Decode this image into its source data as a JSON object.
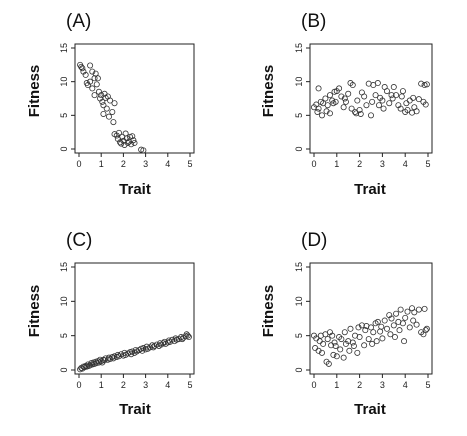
{
  "chart_data": [
    {
      "type": "scatter",
      "panel": "(A)",
      "xlabel": "Trait",
      "ylabel": "Fitness",
      "xlim": [
        0,
        5
      ],
      "ylim": [
        0,
        15
      ],
      "x_ticks": [
        0,
        1,
        2,
        3,
        4,
        5
      ],
      "y_ticks": [
        0,
        5,
        10,
        15
      ],
      "points": [
        [
          0.05,
          12.5
        ],
        [
          0.1,
          12.2
        ],
        [
          0.15,
          12.0
        ],
        [
          0.2,
          11.5
        ],
        [
          0.3,
          11.0
        ],
        [
          0.35,
          9.8
        ],
        [
          0.4,
          9.5
        ],
        [
          0.5,
          10.0
        ],
        [
          0.5,
          12.4
        ],
        [
          0.6,
          11.5
        ],
        [
          0.6,
          9.0
        ],
        [
          0.7,
          10.5
        ],
        [
          0.7,
          8.0
        ],
        [
          0.75,
          11.2
        ],
        [
          0.8,
          9.6
        ],
        [
          0.85,
          10.5
        ],
        [
          0.9,
          8.5
        ],
        [
          0.95,
          7.5
        ],
        [
          1.0,
          8.0
        ],
        [
          1.05,
          7.0
        ],
        [
          1.1,
          6.5
        ],
        [
          1.1,
          5.2
        ],
        [
          1.15,
          8.2
        ],
        [
          1.2,
          7.6
        ],
        [
          1.25,
          6.0
        ],
        [
          1.3,
          7.8
        ],
        [
          1.35,
          4.8
        ],
        [
          1.4,
          7.2
        ],
        [
          1.5,
          5.5
        ],
        [
          1.55,
          4.0
        ],
        [
          1.6,
          6.8
        ],
        [
          1.6,
          2.2
        ],
        [
          1.7,
          2.0
        ],
        [
          1.75,
          1.5
        ],
        [
          1.8,
          2.4
        ],
        [
          1.85,
          1.0
        ],
        [
          1.9,
          0.8
        ],
        [
          1.95,
          1.8
        ],
        [
          2.0,
          1.2
        ],
        [
          2.05,
          0.6
        ],
        [
          2.1,
          2.3
        ],
        [
          2.15,
          1.6
        ],
        [
          2.2,
          0.9
        ],
        [
          2.25,
          1.1
        ],
        [
          2.3,
          1.8
        ],
        [
          2.35,
          0.7
        ],
        [
          2.4,
          1.9
        ],
        [
          2.45,
          1.3
        ],
        [
          2.5,
          0.9
        ],
        [
          2.8,
          -0.1
        ],
        [
          2.9,
          -0.2
        ]
      ]
    },
    {
      "type": "scatter",
      "panel": "(B)",
      "xlabel": "Trait",
      "ylabel": "Fitness",
      "xlim": [
        0,
        5
      ],
      "ylim": [
        0,
        15
      ],
      "x_ticks": [
        0,
        1,
        2,
        3,
        4,
        5
      ],
      "y_ticks": [
        0,
        5,
        10,
        15
      ],
      "points": [
        [
          0.0,
          6.2
        ],
        [
          0.1,
          6.6
        ],
        [
          0.15,
          5.5
        ],
        [
          0.2,
          6.0
        ],
        [
          0.2,
          9.0
        ],
        [
          0.3,
          7.0
        ],
        [
          0.35,
          5.0
        ],
        [
          0.4,
          6.8
        ],
        [
          0.5,
          7.5
        ],
        [
          0.55,
          5.6
        ],
        [
          0.6,
          6.5
        ],
        [
          0.7,
          5.3
        ],
        [
          0.7,
          8.0
        ],
        [
          0.8,
          7.2
        ],
        [
          0.85,
          6.8
        ],
        [
          0.9,
          8.5
        ],
        [
          0.95,
          7.0
        ],
        [
          1.0,
          8.6
        ],
        [
          1.1,
          9.0
        ],
        [
          1.2,
          7.8
        ],
        [
          1.3,
          6.2
        ],
        [
          1.35,
          7.5
        ],
        [
          1.4,
          7.0
        ],
        [
          1.5,
          8.2
        ],
        [
          1.6,
          9.8
        ],
        [
          1.65,
          6.0
        ],
        [
          1.7,
          9.5
        ],
        [
          1.8,
          5.5
        ],
        [
          1.85,
          5.3
        ],
        [
          1.9,
          7.2
        ],
        [
          2.0,
          5.8
        ],
        [
          2.05,
          5.2
        ],
        [
          2.1,
          8.4
        ],
        [
          2.2,
          7.8
        ],
        [
          2.3,
          6.5
        ],
        [
          2.4,
          9.7
        ],
        [
          2.5,
          5.0
        ],
        [
          2.55,
          7.0
        ],
        [
          2.6,
          9.5
        ],
        [
          2.7,
          8.0
        ],
        [
          2.8,
          9.8
        ],
        [
          2.85,
          6.5
        ],
        [
          2.9,
          7.6
        ],
        [
          3.0,
          7.2
        ],
        [
          3.05,
          6.0
        ],
        [
          3.1,
          9.2
        ],
        [
          3.2,
          8.6
        ],
        [
          3.3,
          6.8
        ],
        [
          3.4,
          8.0
        ],
        [
          3.45,
          7.5
        ],
        [
          3.5,
          9.2
        ],
        [
          3.6,
          8.0
        ],
        [
          3.7,
          6.5
        ],
        [
          3.8,
          6.0
        ],
        [
          3.85,
          7.8
        ],
        [
          3.9,
          8.6
        ],
        [
          4.0,
          5.5
        ],
        [
          4.05,
          6.8
        ],
        [
          4.1,
          5.8
        ],
        [
          4.2,
          7.2
        ],
        [
          4.3,
          5.4
        ],
        [
          4.35,
          7.6
        ],
        [
          4.4,
          6.2
        ],
        [
          4.5,
          5.6
        ],
        [
          4.6,
          7.4
        ],
        [
          4.7,
          9.7
        ],
        [
          4.8,
          7.0
        ],
        [
          4.85,
          9.5
        ],
        [
          4.9,
          6.6
        ],
        [
          4.95,
          9.6
        ]
      ]
    },
    {
      "type": "scatter",
      "panel": "(C)",
      "xlabel": "Trait",
      "ylabel": "Fitness",
      "xlim": [
        0,
        5
      ],
      "ylim": [
        0,
        15
      ],
      "x_ticks": [
        0,
        1,
        2,
        3,
        4,
        5
      ],
      "y_ticks": [
        0,
        5,
        10,
        15
      ],
      "points": [
        [
          0.05,
          0.1
        ],
        [
          0.1,
          0.3
        ],
        [
          0.15,
          0.2
        ],
        [
          0.2,
          0.5
        ],
        [
          0.25,
          0.4
        ],
        [
          0.3,
          0.6
        ],
        [
          0.35,
          0.5
        ],
        [
          0.4,
          0.8
        ],
        [
          0.45,
          0.6
        ],
        [
          0.5,
          0.7
        ],
        [
          0.55,
          1.0
        ],
        [
          0.6,
          0.8
        ],
        [
          0.65,
          1.1
        ],
        [
          0.7,
          0.9
        ],
        [
          0.75,
          1.2
        ],
        [
          0.8,
          1.0
        ],
        [
          0.85,
          1.3
        ],
        [
          0.9,
          1.1
        ],
        [
          0.95,
          1.5
        ],
        [
          1.0,
          1.3
        ],
        [
          1.05,
          1.1
        ],
        [
          1.1,
          1.5
        ],
        [
          1.15,
          1.4
        ],
        [
          1.2,
          1.7
        ],
        [
          1.3,
          1.5
        ],
        [
          1.35,
          1.8
        ],
        [
          1.4,
          1.6
        ],
        [
          1.5,
          1.9
        ],
        [
          1.55,
          1.7
        ],
        [
          1.6,
          2.0
        ],
        [
          1.7,
          1.9
        ],
        [
          1.75,
          2.2
        ],
        [
          1.8,
          2.0
        ],
        [
          1.9,
          2.3
        ],
        [
          2.0,
          2.1
        ],
        [
          2.05,
          2.5
        ],
        [
          2.1,
          2.2
        ],
        [
          2.2,
          2.4
        ],
        [
          2.3,
          2.6
        ],
        [
          2.35,
          2.3
        ],
        [
          2.4,
          2.7
        ],
        [
          2.5,
          2.5
        ],
        [
          2.55,
          2.9
        ],
        [
          2.6,
          2.7
        ],
        [
          2.7,
          2.9
        ],
        [
          2.8,
          3.1
        ],
        [
          2.85,
          2.8
        ],
        [
          2.9,
          3.2
        ],
        [
          3.0,
          3.0
        ],
        [
          3.05,
          3.4
        ],
        [
          3.1,
          3.1
        ],
        [
          3.2,
          3.3
        ],
        [
          3.3,
          3.6
        ],
        [
          3.35,
          3.3
        ],
        [
          3.4,
          3.5
        ],
        [
          3.5,
          3.7
        ],
        [
          3.6,
          3.5
        ],
        [
          3.65,
          3.9
        ],
        [
          3.7,
          3.7
        ],
        [
          3.8,
          3.9
        ],
        [
          3.85,
          4.1
        ],
        [
          3.9,
          3.8
        ],
        [
          4.0,
          4.0
        ],
        [
          4.05,
          4.3
        ],
        [
          4.1,
          4.1
        ],
        [
          4.2,
          4.4
        ],
        [
          4.3,
          4.2
        ],
        [
          4.35,
          4.6
        ],
        [
          4.4,
          4.4
        ],
        [
          4.5,
          4.5
        ],
        [
          4.6,
          4.8
        ],
        [
          4.65,
          4.5
        ],
        [
          4.7,
          4.7
        ],
        [
          4.8,
          4.9
        ],
        [
          4.85,
          5.2
        ],
        [
          4.9,
          5.0
        ],
        [
          4.95,
          4.8
        ]
      ]
    },
    {
      "type": "scatter",
      "panel": "(D)",
      "xlabel": "Trait",
      "ylabel": "Fitness",
      "xlim": [
        0,
        5
      ],
      "ylim": [
        0,
        15
      ],
      "x_ticks": [
        0,
        1,
        2,
        3,
        4,
        5
      ],
      "y_ticks": [
        0,
        5,
        10,
        15
      ],
      "points": [
        [
          0.0,
          5.0
        ],
        [
          0.05,
          3.2
        ],
        [
          0.1,
          4.6
        ],
        [
          0.2,
          2.8
        ],
        [
          0.25,
          4.2
        ],
        [
          0.3,
          5.0
        ],
        [
          0.35,
          2.5
        ],
        [
          0.4,
          3.8
        ],
        [
          0.5,
          5.2
        ],
        [
          0.55,
          1.2
        ],
        [
          0.6,
          4.5
        ],
        [
          0.65,
          0.9
        ],
        [
          0.7,
          5.5
        ],
        [
          0.75,
          3.6
        ],
        [
          0.8,
          5.0
        ],
        [
          0.85,
          2.2
        ],
        [
          0.9,
          4.0
        ],
        [
          0.95,
          3.5
        ],
        [
          1.0,
          2.0
        ],
        [
          1.1,
          4.8
        ],
        [
          1.15,
          3.0
        ],
        [
          1.2,
          4.5
        ],
        [
          1.3,
          1.8
        ],
        [
          1.35,
          5.5
        ],
        [
          1.4,
          3.8
        ],
        [
          1.5,
          4.2
        ],
        [
          1.55,
          2.8
        ],
        [
          1.6,
          6.0
        ],
        [
          1.7,
          4.0
        ],
        [
          1.75,
          3.5
        ],
        [
          1.8,
          5.0
        ],
        [
          1.9,
          2.5
        ],
        [
          1.95,
          6.2
        ],
        [
          2.0,
          4.8
        ],
        [
          2.1,
          6.5
        ],
        [
          2.2,
          3.6
        ],
        [
          2.25,
          5.8
        ],
        [
          2.3,
          6.4
        ],
        [
          2.4,
          4.5
        ],
        [
          2.5,
          6.2
        ],
        [
          2.55,
          3.8
        ],
        [
          2.6,
          5.5
        ],
        [
          2.7,
          6.8
        ],
        [
          2.75,
          4.2
        ],
        [
          2.8,
          7.0
        ],
        [
          2.9,
          5.6
        ],
        [
          2.95,
          6.3
        ],
        [
          3.0,
          4.6
        ],
        [
          3.1,
          7.2
        ],
        [
          3.2,
          6.0
        ],
        [
          3.3,
          8.0
        ],
        [
          3.35,
          5.2
        ],
        [
          3.4,
          7.5
        ],
        [
          3.5,
          6.5
        ],
        [
          3.55,
          4.8
        ],
        [
          3.6,
          8.2
        ],
        [
          3.7,
          7.0
        ],
        [
          3.75,
          5.8
        ],
        [
          3.8,
          8.8
        ],
        [
          3.9,
          6.8
        ],
        [
          3.95,
          4.2
        ],
        [
          4.0,
          7.6
        ],
        [
          4.1,
          8.5
        ],
        [
          4.2,
          6.2
        ],
        [
          4.3,
          9.0
        ],
        [
          4.35,
          7.2
        ],
        [
          4.4,
          8.4
        ],
        [
          4.5,
          6.6
        ],
        [
          4.6,
          8.8
        ],
        [
          4.7,
          5.5
        ],
        [
          4.8,
          5.2
        ],
        [
          4.85,
          8.9
        ],
        [
          4.9,
          5.8
        ],
        [
          4.95,
          6.0
        ]
      ]
    }
  ]
}
